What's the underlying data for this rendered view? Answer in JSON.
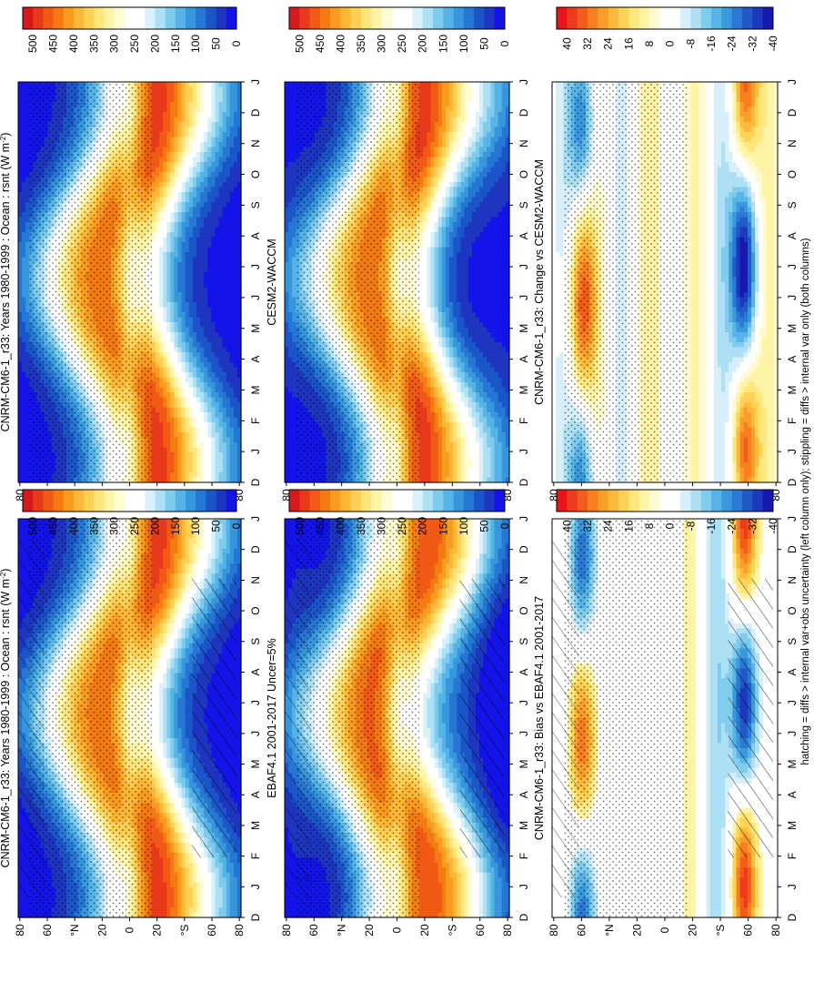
{
  "figure": {
    "footnote": "hatching = diffs > internal var+obs uncertainty (left column only); stippling = diffs > internal var only (both columns)"
  },
  "colorbars": {
    "absolute": {
      "labels": [
        "500",
        "450",
        "400",
        "350",
        "300",
        "250",
        "200",
        "150",
        "100",
        "50",
        "0"
      ],
      "colors": [
        "#d7191c",
        "#e83a1a",
        "#f05a14",
        "#f47a12",
        "#f99b1f",
        "#fcb737",
        "#fdd053",
        "#fde57c",
        "#fef4a8",
        "#fffbd4",
        "#ffffff",
        "#ffffff",
        "#d8f1fb",
        "#ade0f4",
        "#7ecbee",
        "#55b3e6",
        "#3796dc",
        "#2676d3",
        "#1b56c9",
        "#1d35bf",
        "#1414e8"
      ]
    },
    "difference": {
      "labels": [
        "40",
        "32",
        "24",
        "16",
        "8",
        "0",
        "-8",
        "-16",
        "-24",
        "-32",
        "-40"
      ],
      "colors": [
        "#e8141a",
        "#ee3b1c",
        "#f25d1b",
        "#f77f20",
        "#fa9e2a",
        "#fcba3c",
        "#fdd255",
        "#fee77c",
        "#fff3a6",
        "#fffad0",
        "#ffffff",
        "#ffffff",
        "#d6effa",
        "#ade0f4",
        "#80ccee",
        "#58b4e6",
        "#3a98dc",
        "#2a79d3",
        "#2159c9",
        "#1d3abf",
        "#1818b0"
      ]
    }
  },
  "axes": {
    "month_labels": [
      "D",
      "J",
      "F",
      "M",
      "A",
      "M",
      "J",
      "J",
      "A",
      "S",
      "O",
      "N",
      "D",
      "J"
    ],
    "lat_labels": [
      "80",
      "60",
      "°N",
      "20",
      "0",
      "20",
      "°S",
      "60",
      "80"
    ]
  },
  "chart_data": [
    {
      "type": "heatmap",
      "title": "CNRM-CM6-1_r33: Years 1980-1999 : Ocean : rsnt (W m",
      "title_sup": "-2",
      "title_end": ")",
      "field": "model",
      "colorbar": "absolute",
      "hatching": true,
      "stippling": true
    },
    {
      "type": "heatmap",
      "title": "CNRM-CM6-1_r33: Years 1980-1999 : Ocean : rsnt (W m",
      "title_sup": "-2",
      "title_end": ")",
      "field": "model",
      "colorbar": "absolute",
      "hatching": false,
      "stippling": true
    },
    {
      "type": "heatmap",
      "title": "EBAF4.1 2001-2017 Uncer=5%",
      "field": "obs",
      "colorbar": "absolute",
      "hatching": true,
      "stippling": true
    },
    {
      "type": "heatmap",
      "title": "CESM2-WACCM",
      "field": "model2",
      "colorbar": "absolute",
      "hatching": false,
      "stippling": true
    },
    {
      "type": "heatmap",
      "title": "CNRM-CM6-1_r33: Bias vs EBAF4.1 2001-2017",
      "field": "bias",
      "colorbar": "difference",
      "hatching": true,
      "stippling": true
    },
    {
      "type": "heatmap",
      "title": "CNRM-CM6-1_r33: Change vs CESM2-WACCM",
      "field": "change",
      "colorbar": "difference",
      "hatching": false,
      "stippling": true
    }
  ]
}
